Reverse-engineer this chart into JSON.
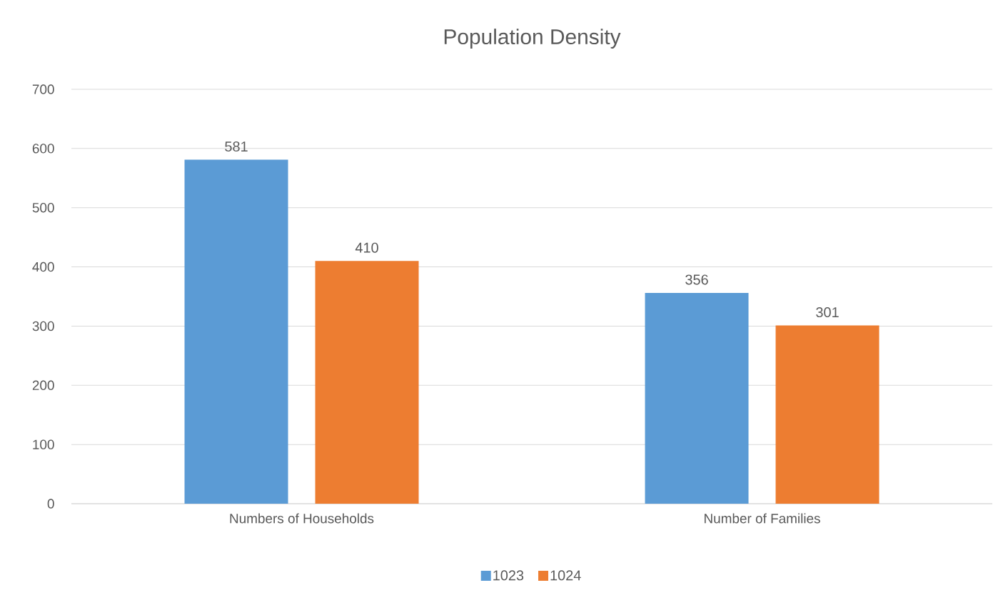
{
  "chart_data": {
    "type": "bar",
    "title": "Population Density",
    "categories": [
      "Numbers of Households",
      "Number of Families"
    ],
    "series": [
      {
        "name": "1023",
        "color": "#5b9bd5",
        "values": [
          581,
          356
        ]
      },
      {
        "name": "1024",
        "color": "#ed7d31",
        "values": [
          410,
          301
        ]
      }
    ],
    "ylim": [
      0,
      700
    ],
    "yticks": [
      0,
      100,
      200,
      300,
      400,
      500,
      600,
      700
    ],
    "grid": "y",
    "legend": "bottom",
    "data_labels": true
  }
}
